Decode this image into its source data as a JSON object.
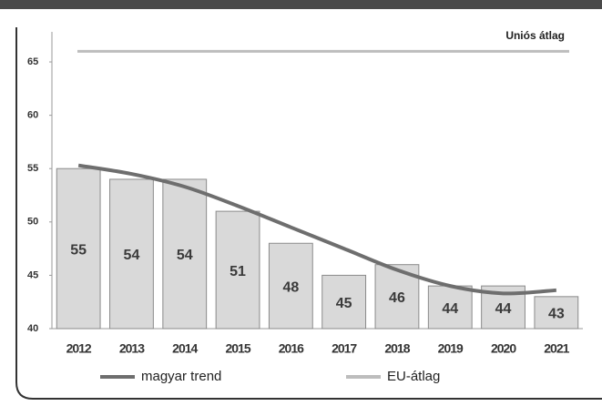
{
  "chart_data": {
    "type": "bar",
    "annotation": "Uniós átlag",
    "categories": [
      "2012",
      "2013",
      "2014",
      "2015",
      "2016",
      "2017",
      "2018",
      "2019",
      "2020",
      "2021"
    ],
    "values": [
      55,
      54,
      54,
      51,
      48,
      45,
      46,
      44,
      44,
      43
    ],
    "color": "#d9d9d9",
    "series": [
      {
        "name": "magyar trend",
        "color": "#6e6e6e",
        "values": [
          55.3,
          54.5,
          53.3,
          51.5,
          49.5,
          47.5,
          45.5,
          44,
          43.3,
          43.6
        ]
      },
      {
        "name": "EU-átlag",
        "color": "#bdbdbd",
        "values": [
          66,
          66,
          66,
          66,
          66,
          66,
          66,
          66,
          66,
          66
        ]
      }
    ],
    "ylim": [
      40,
      67
    ],
    "yticks": [
      40,
      45,
      50,
      55,
      60,
      65
    ]
  }
}
